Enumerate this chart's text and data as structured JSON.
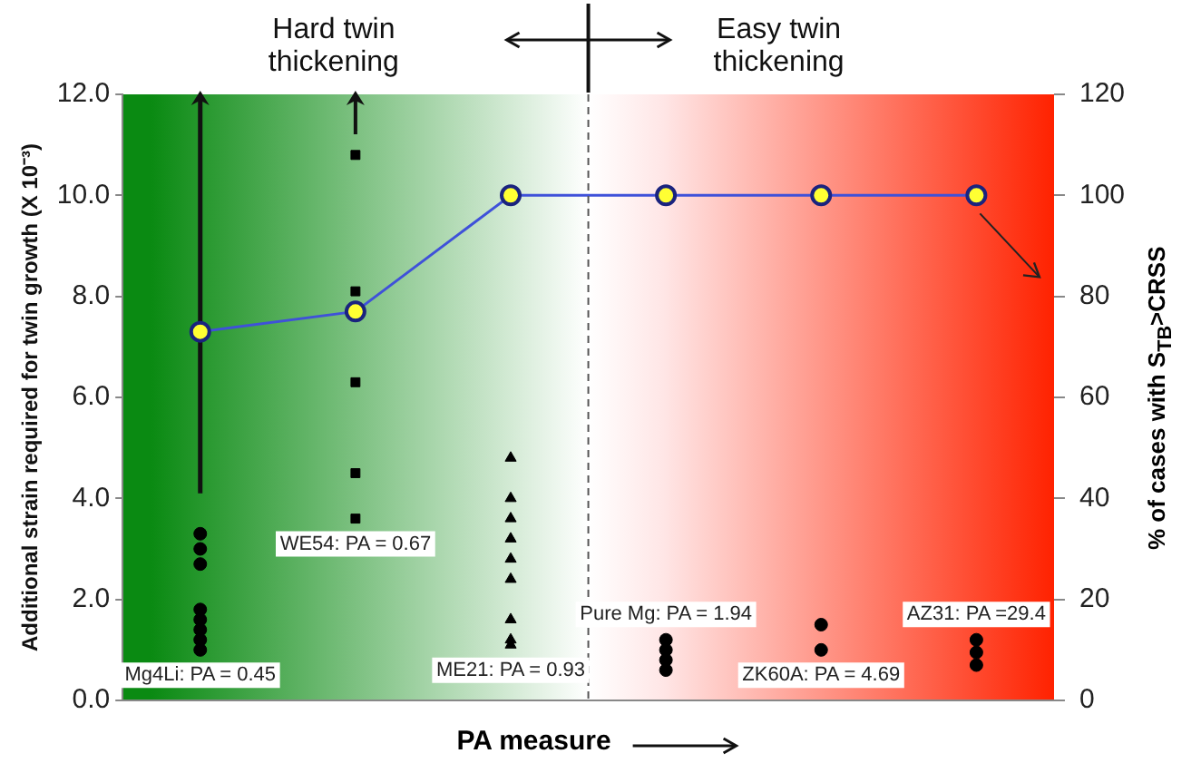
{
  "chart_data": {
    "type": "scatter",
    "categories": [
      "Mg4Li: PA = 0.45",
      "WE54: PA = 0.67",
      "ME21: PA = 0.93",
      "Pure Mg: PA = 1.94",
      "ZK60A: PA = 4.69",
      "AZ31: PA =29.4"
    ],
    "series": [
      {
        "type": "line",
        "axis": "y2",
        "color": "#3f51d9",
        "marker": "circle",
        "values": [
          73,
          77,
          100,
          100,
          100,
          100
        ]
      },
      {
        "type": "scatter",
        "color": "#000000",
        "marker": "circle",
        "x": [
          "Mg4Li: PA = 0.45",
          "Mg4Li: PA = 0.45",
          "Mg4Li: PA = 0.45",
          "Mg4Li: PA = 0.45",
          "Mg4Li: PA = 0.45",
          "Mg4Li: PA = 0.45",
          "Mg4Li: PA = 0.45",
          "Mg4Li: PA = 0.45",
          "Pure Mg: PA = 1.94",
          "Pure Mg: PA = 1.94",
          "Pure Mg: PA = 1.94",
          "Pure Mg: PA = 1.94",
          "ZK60A: PA = 4.69",
          "ZK60A: PA = 4.69",
          "AZ31: PA =29.4",
          "AZ31: PA =29.4",
          "AZ31: PA =29.4"
        ],
        "values": [
          3.3,
          3.0,
          2.7,
          1.8,
          1.6,
          1.4,
          1.2,
          1.0,
          1.2,
          1.0,
          0.8,
          0.6,
          1.5,
          1.0,
          1.2,
          0.95,
          0.7
        ]
      },
      {
        "type": "scatter",
        "color": "#000000",
        "marker": "square",
        "x": [
          "WE54: PA = 0.67",
          "WE54: PA = 0.67",
          "WE54: PA = 0.67",
          "WE54: PA = 0.67",
          "WE54: PA = 0.67"
        ],
        "values": [
          10.8,
          8.1,
          6.3,
          4.5,
          3.6
        ]
      },
      {
        "type": "scatter",
        "color": "#000000",
        "marker": "triangle",
        "x": [
          "ME21: PA = 0.93",
          "ME21: PA = 0.93",
          "ME21: PA = 0.93",
          "ME21: PA = 0.93",
          "ME21: PA = 0.93",
          "ME21: PA = 0.93",
          "ME21: PA = 0.93",
          "ME21: PA = 0.93",
          "ME21: PA = 0.93"
        ],
        "values": [
          4.8,
          4.0,
          3.6,
          3.2,
          2.8,
          2.4,
          1.6,
          1.2,
          1.1
        ]
      }
    ],
    "xlabel": "PA measure",
    "ylabel": "Additional strain required for twin growth (X 10⁻³)",
    "y2label": "% of cases with S$_{TB}$>CRSS",
    "ylim": [
      0,
      12
    ],
    "yticks": [
      {
        "value": 0,
        "label": "0.0"
      },
      {
        "value": 2,
        "label": "2.0"
      },
      {
        "value": 4,
        "label": "4.0"
      },
      {
        "value": 6,
        "label": "6.0"
      },
      {
        "value": 8,
        "label": "8.0"
      },
      {
        "value": 10,
        "label": "10.0"
      },
      {
        "value": 12,
        "label": "12.0"
      }
    ],
    "y2lim": [
      0,
      120
    ],
    "y2ticks": [
      0,
      20,
      40,
      60,
      80,
      100,
      120
    ],
    "annotations": [
      "Hard twin thickening",
      "Easy twin thickening"
    ],
    "tick_labels": "y",
    "grid": false,
    "legend": false
  }
}
